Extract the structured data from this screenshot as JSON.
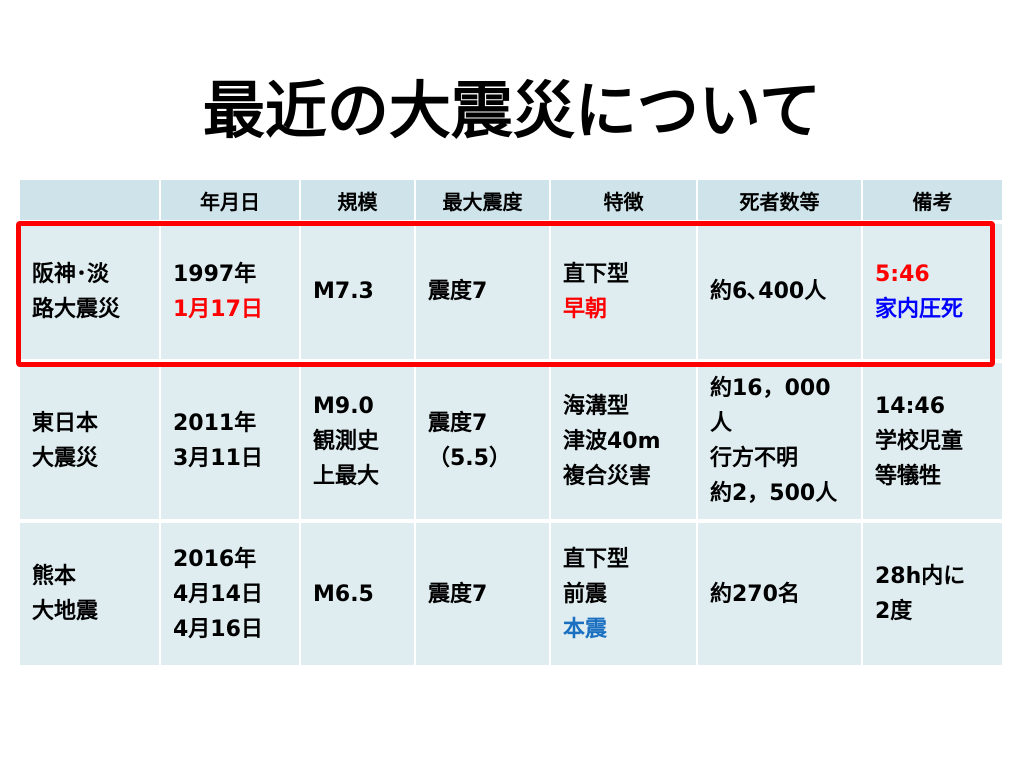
{
  "title": "最近の大震災について",
  "table": {
    "header": [
      "",
      "年月日",
      "規模",
      "最大震度",
      "特徴",
      "死者数等",
      "備考"
    ],
    "rows": [
      [
        [
          "阪神･淡",
          "路大震災"
        ],
        [
          "1997年",
          {
            "text": "1月17日",
            "color": "#ff0000"
          }
        ],
        [
          "M7.3"
        ],
        [
          "震度7"
        ],
        [
          "直下型",
          {
            "text": "早朝",
            "color": "#ff0000"
          }
        ],
        [
          "約6､400人"
        ],
        [
          {
            "text": "5:46",
            "color": "#ff0000"
          },
          {
            "text": "家内圧死",
            "color": "#0000ff"
          }
        ]
      ],
      [
        [
          "東日本",
          "大震災"
        ],
        [
          "2011年",
          "3月11日"
        ],
        [
          "M9.0",
          "観測史",
          "上最大"
        ],
        [
          "震度7",
          "（5.5）"
        ],
        [
          "海溝型",
          "津波40m",
          "複合災害"
        ],
        [
          "約16，000",
          "人",
          "行方不明",
          "約2，500人"
        ],
        [
          "14:46",
          "学校児童",
          "等犠牲"
        ]
      ],
      [
        [
          "熊本",
          "大地震"
        ],
        [
          "2016年",
          "4月14日",
          "4月16日"
        ],
        [
          "M6.5"
        ],
        [
          "震度7"
        ],
        [
          "直下型",
          "前震",
          {
            "text": "本震",
            "color": "#1a6fc0"
          }
        ],
        [
          "約270名"
        ],
        [
          "28h内に",
          "2度"
        ]
      ]
    ],
    "highlight_row": 0,
    "highlight_color": "#ff0000"
  }
}
